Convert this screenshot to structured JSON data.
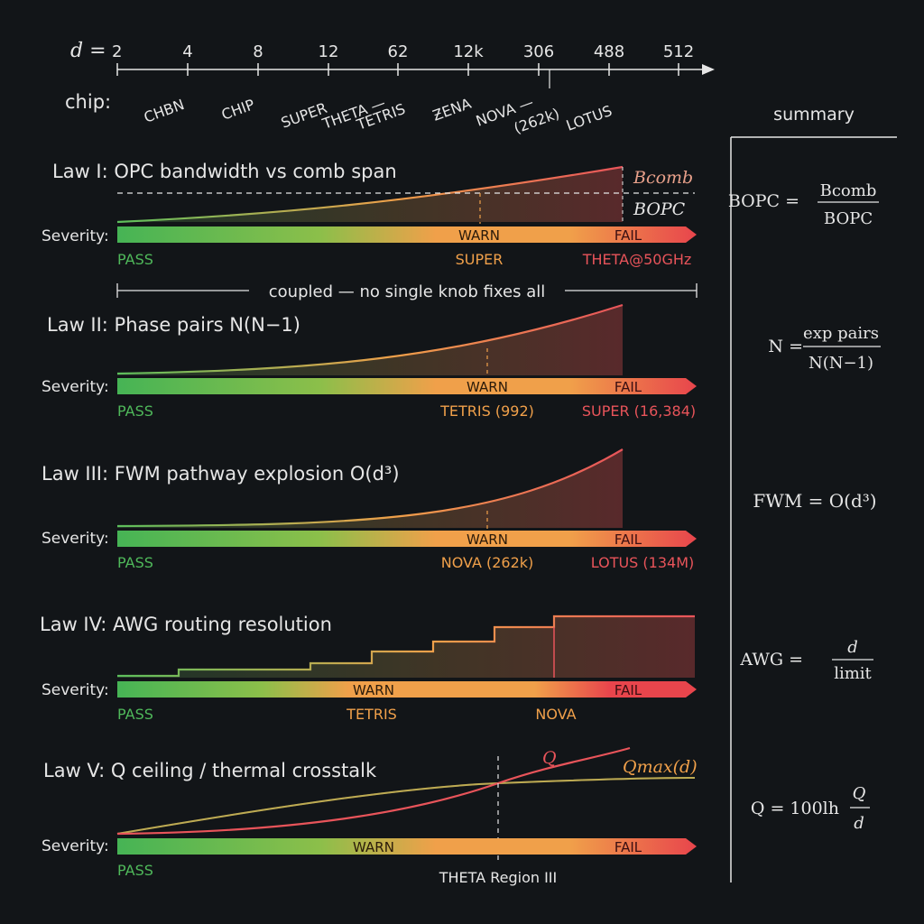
{
  "axis": {
    "d_label": "d =",
    "ticks": [
      "2",
      "4",
      "8",
      "12",
      "62",
      "12k",
      "306",
      "488",
      "512"
    ]
  },
  "chips": {
    "label": "chip:",
    "names": [
      "CHBN",
      "CHIP",
      "SUPER",
      "THETA —",
      "TETRIS",
      "ƵΕΝΑ",
      "NOVA —",
      "(262k)",
      "LOTUS"
    ]
  },
  "summary": {
    "title": "summary",
    "formulas": [
      {
        "lhs": "BOPC =",
        "num": "Bcomb",
        "den": "BOPC"
      },
      {
        "lhs": "N =",
        "num": "exp pairs",
        "den": "N(N−1)"
      },
      {
        "lhs": "FWM = O(d³)",
        "num": "",
        "den": ""
      },
      {
        "lhs": "AWG =",
        "num": "d",
        "den": "limit"
      },
      {
        "lhs": "Q = 100lh",
        "num": "Q",
        "den": "d"
      }
    ]
  },
  "severity_label": "Severity:",
  "laws": [
    {
      "title": "Law I:  OPC bandwidth vs comb span",
      "curve_labels": [
        "Bcomb",
        "BOPC"
      ],
      "bar": {
        "warn": "WARN",
        "fail": "FAIL"
      },
      "markers": [
        "PASS",
        "SUPER",
        "THETA@50GHz"
      ]
    },
    {
      "title": "Law II:  Phase pairs N(N−1)",
      "curve_labels": [],
      "bar": {
        "warn": "WARN",
        "fail": "FAIL"
      },
      "markers": [
        "PASS",
        "TETRIS (992)",
        "SUPER (16,384)"
      ]
    },
    {
      "title": "Law III:  FWM pathway explosion O(d³)",
      "curve_labels": [],
      "bar": {
        "warn": "WARN",
        "fail": "FAIL"
      },
      "markers": [
        "PASS",
        "NOVA (262k)",
        "LOTUS (134M)"
      ]
    },
    {
      "title": "Law IV:  AWG routing resolution",
      "curve_labels": [],
      "bar": {
        "warn": "WARN",
        "fail": "FAIL"
      },
      "markers": [
        "PASS",
        "TETRIS",
        "NOVA"
      ]
    },
    {
      "title": "Law V:  Q ceiling / thermal crosstalk",
      "curve_labels": [
        "Q",
        "Qmax(d)"
      ],
      "bar": {
        "warn": "WARN",
        "fail": "FAIL"
      },
      "markers": [
        "PASS",
        "THETA Region III"
      ]
    }
  ],
  "coupling_note": "coupled — no single knob fixes all",
  "colors": {
    "pass": "#4fb85a",
    "warn": "#f0a04a",
    "fail": "#e8545a",
    "background": "#121518"
  }
}
